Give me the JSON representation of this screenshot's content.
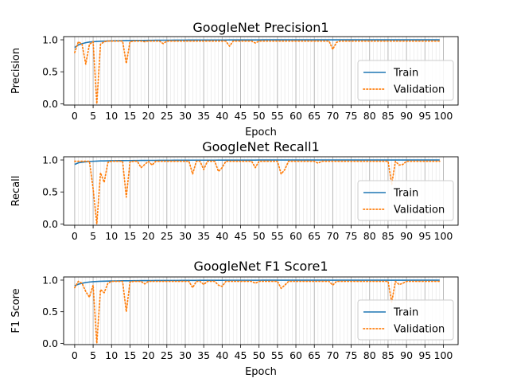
{
  "colors": {
    "train": "#1f77b4",
    "validation": "#ff7f0e",
    "grid": "#b0b0b0"
  },
  "chart_data": [
    {
      "type": "line",
      "title": "GoogleNet Precision1",
      "xlabel": "Epoch",
      "ylabel": "Precision",
      "xlim": [
        -3,
        104
      ],
      "ylim": [
        -0.02,
        1.05
      ],
      "xticks": [
        "0",
        "5",
        "10",
        "15",
        "20",
        "25",
        "30",
        "35",
        "40",
        "45",
        "50",
        "55",
        "60",
        "65",
        "70",
        "75",
        "80",
        "85",
        "90",
        "95",
        "100"
      ],
      "yticks": [
        "0.0",
        "0.5",
        "1.0"
      ],
      "grid": "vertical lines at every epoch",
      "legend": {
        "position": "lower-right",
        "entries": [
          "Train",
          "Validation"
        ]
      },
      "series": [
        {
          "name": "Train",
          "style": "solid",
          "values": [
            0.88,
            0.92,
            0.94,
            0.955,
            0.965,
            0.97,
            0.975,
            0.978,
            0.98,
            0.982,
            0.984,
            0.985,
            0.986,
            0.987,
            0.988,
            0.989,
            0.99,
            0.99,
            0.991,
            0.991,
            0.992,
            0.992,
            0.993,
            0.993,
            0.994,
            0.994,
            0.994,
            0.995,
            0.995,
            0.995,
            0.995,
            0.996,
            0.996,
            0.996,
            0.996,
            0.996,
            0.997,
            0.997,
            0.997,
            0.997,
            0.997,
            0.997,
            0.998,
            0.998,
            0.998,
            0.998,
            0.998,
            0.998,
            0.998,
            0.998,
            0.998,
            0.999,
            0.999,
            0.999,
            0.999,
            0.999,
            0.999,
            0.999,
            0.999,
            0.999,
            0.999,
            0.999,
            0.999,
            0.999,
            0.999,
            0.999,
            0.999,
            0.999,
            0.999,
            0.999,
            0.999,
            0.999,
            0.999,
            0.999,
            0.999,
            0.999,
            0.999,
            0.999,
            0.999,
            0.999,
            0.999,
            0.999,
            0.999,
            0.999,
            0.999,
            0.999,
            0.999,
            0.999,
            0.999,
            0.999,
            0.999,
            0.999,
            0.999,
            0.999,
            0.999,
            0.999,
            0.999,
            0.999,
            0.999,
            0.999
          ]
        },
        {
          "name": "Validation",
          "style": "dotted",
          "values": [
            0.8,
            0.97,
            0.93,
            0.62,
            0.93,
            0.97,
            0.0,
            0.93,
            0.97,
            0.98,
            0.98,
            0.98,
            0.98,
            0.98,
            0.63,
            0.97,
            0.98,
            0.98,
            0.98,
            0.97,
            0.98,
            0.98,
            0.98,
            0.98,
            0.94,
            0.98,
            0.98,
            0.98,
            0.98,
            0.98,
            0.98,
            0.98,
            0.98,
            0.98,
            0.98,
            0.98,
            0.98,
            0.98,
            0.98,
            0.98,
            0.98,
            0.98,
            0.9,
            0.98,
            0.98,
            0.98,
            0.98,
            0.98,
            0.98,
            0.95,
            0.98,
            0.98,
            0.98,
            0.98,
            0.98,
            0.98,
            0.98,
            0.98,
            0.98,
            0.98,
            0.98,
            0.98,
            0.98,
            0.98,
            0.98,
            0.98,
            0.98,
            0.98,
            0.98,
            0.98,
            0.85,
            0.96,
            0.98,
            0.98,
            0.98,
            0.98,
            0.98,
            0.98,
            0.98,
            0.98,
            0.98,
            0.98,
            0.98,
            0.98,
            0.98,
            0.98,
            0.98,
            0.98,
            0.98,
            0.98,
            0.98,
            0.98,
            0.98,
            0.98,
            0.98,
            0.98,
            0.98,
            0.98,
            0.98,
            0.98
          ]
        }
      ]
    },
    {
      "type": "line",
      "title": "GoogleNet Recall1",
      "xlabel": "",
      "ylabel": "Recall",
      "xlim": [
        -3,
        104
      ],
      "ylim": [
        -0.02,
        1.05
      ],
      "xticks": [
        "0",
        "5",
        "10",
        "15",
        "20",
        "25",
        "30",
        "35",
        "40",
        "45",
        "50",
        "55",
        "60",
        "65",
        "70",
        "75",
        "80",
        "85",
        "90",
        "95",
        "100"
      ],
      "yticks": [
        "0.0",
        "0.5",
        "1.0"
      ],
      "grid": "vertical lines at every epoch",
      "legend": {
        "position": "lower-right",
        "entries": [
          "Train",
          "Validation"
        ]
      },
      "series": [
        {
          "name": "Train",
          "style": "solid",
          "values": [
            0.93,
            0.955,
            0.965,
            0.972,
            0.977,
            0.98,
            0.983,
            0.985,
            0.986,
            0.987,
            0.988,
            0.989,
            0.99,
            0.99,
            0.991,
            0.991,
            0.992,
            0.992,
            0.993,
            0.993,
            0.994,
            0.994,
            0.994,
            0.995,
            0.995,
            0.995,
            0.995,
            0.996,
            0.996,
            0.996,
            0.996,
            0.996,
            0.997,
            0.997,
            0.997,
            0.997,
            0.997,
            0.997,
            0.997,
            0.998,
            0.998,
            0.998,
            0.998,
            0.998,
            0.998,
            0.998,
            0.998,
            0.998,
            0.998,
            0.998,
            0.999,
            0.999,
            0.999,
            0.999,
            0.999,
            0.999,
            0.999,
            0.999,
            0.999,
            0.999,
            0.999,
            0.999,
            0.999,
            0.999,
            0.999,
            0.999,
            0.999,
            0.999,
            0.999,
            0.999,
            0.999,
            0.999,
            0.999,
            0.999,
            0.999,
            0.999,
            0.999,
            0.999,
            0.999,
            0.999,
            0.999,
            0.999,
            0.999,
            0.999,
            0.999,
            0.999,
            0.999,
            0.999,
            0.999,
            0.999,
            0.999,
            0.999,
            0.999,
            0.999,
            0.999,
            0.999,
            0.999,
            0.999,
            0.999,
            0.999
          ]
        },
        {
          "name": "Validation",
          "style": "dotted",
          "values": [
            0.98,
            0.98,
            0.98,
            0.98,
            0.98,
            0.55,
            0.0,
            0.8,
            0.65,
            0.96,
            0.98,
            0.98,
            0.98,
            0.98,
            0.42,
            0.97,
            0.98,
            0.98,
            0.88,
            0.93,
            0.98,
            0.92,
            0.98,
            0.98,
            0.98,
            0.98,
            0.98,
            0.98,
            0.98,
            0.98,
            0.98,
            0.98,
            0.78,
            0.98,
            0.98,
            0.85,
            0.98,
            0.98,
            0.98,
            0.82,
            0.88,
            0.98,
            0.98,
            0.98,
            0.98,
            0.98,
            0.98,
            0.98,
            0.98,
            0.88,
            0.98,
            0.98,
            0.98,
            0.98,
            0.98,
            0.98,
            0.78,
            0.85,
            0.98,
            0.98,
            0.98,
            0.98,
            0.98,
            0.98,
            0.98,
            0.98,
            0.95,
            0.98,
            0.98,
            0.98,
            0.98,
            0.98,
            0.98,
            0.98,
            0.98,
            0.98,
            0.98,
            0.98,
            0.98,
            0.98,
            0.98,
            0.98,
            0.98,
            0.98,
            0.98,
            0.98,
            0.62,
            0.98,
            0.92,
            0.93,
            0.98,
            0.98,
            0.98,
            0.98,
            0.98,
            0.98,
            0.98,
            0.98,
            0.98,
            0.98
          ]
        }
      ]
    },
    {
      "type": "line",
      "title": "GoogleNet F1 Score1",
      "xlabel": "Epoch",
      "ylabel": "F1 Score",
      "xlim": [
        -3,
        104
      ],
      "ylim": [
        -0.02,
        1.05
      ],
      "xticks": [
        "0",
        "5",
        "10",
        "15",
        "20",
        "25",
        "30",
        "35",
        "40",
        "45",
        "50",
        "55",
        "60",
        "65",
        "70",
        "75",
        "80",
        "85",
        "90",
        "95",
        "100"
      ],
      "yticks": [
        "0.0",
        "0.5",
        "1.0"
      ],
      "grid": "vertical lines at every epoch",
      "legend": {
        "position": "lower-right",
        "entries": [
          "Train",
          "Validation"
        ]
      },
      "series": [
        {
          "name": "Train",
          "style": "solid",
          "values": [
            0.91,
            0.935,
            0.95,
            0.962,
            0.97,
            0.975,
            0.979,
            0.981,
            0.983,
            0.985,
            0.986,
            0.987,
            0.988,
            0.989,
            0.99,
            0.99,
            0.991,
            0.991,
            0.992,
            0.992,
            0.993,
            0.993,
            0.994,
            0.994,
            0.994,
            0.995,
            0.995,
            0.995,
            0.995,
            0.996,
            0.996,
            0.996,
            0.996,
            0.996,
            0.997,
            0.997,
            0.997,
            0.997,
            0.997,
            0.997,
            0.997,
            0.998,
            0.998,
            0.998,
            0.998,
            0.998,
            0.998,
            0.998,
            0.998,
            0.998,
            0.998,
            0.999,
            0.999,
            0.999,
            0.999,
            0.999,
            0.999,
            0.999,
            0.999,
            0.999,
            0.999,
            0.999,
            0.999,
            0.999,
            0.999,
            0.999,
            0.999,
            0.999,
            0.999,
            0.999,
            0.999,
            0.999,
            0.999,
            0.999,
            0.999,
            0.999,
            0.999,
            0.999,
            0.999,
            0.999,
            0.999,
            0.999,
            0.999,
            0.999,
            0.999,
            0.999,
            0.999,
            0.999,
            0.999,
            0.999,
            0.999,
            0.999,
            0.999,
            0.999,
            0.999,
            0.999,
            0.999,
            0.999,
            0.999,
            0.999
          ]
        },
        {
          "name": "Validation",
          "style": "dotted",
          "values": [
            0.88,
            0.98,
            0.95,
            0.82,
            0.73,
            0.92,
            0.0,
            0.85,
            0.8,
            0.95,
            0.98,
            0.98,
            0.98,
            0.98,
            0.5,
            0.97,
            0.98,
            0.98,
            0.98,
            0.94,
            0.98,
            0.98,
            0.98,
            0.98,
            0.98,
            0.98,
            0.98,
            0.98,
            0.98,
            0.98,
            0.98,
            0.98,
            0.88,
            0.98,
            0.98,
            0.93,
            0.98,
            0.98,
            0.98,
            0.92,
            0.9,
            0.98,
            0.98,
            0.98,
            0.98,
            0.98,
            0.98,
            0.98,
            0.98,
            0.95,
            0.98,
            0.98,
            0.98,
            0.98,
            0.98,
            0.98,
            0.87,
            0.92,
            0.98,
            0.98,
            0.98,
            0.98,
            0.98,
            0.98,
            0.98,
            0.98,
            0.98,
            0.98,
            0.98,
            0.98,
            0.92,
            0.98,
            0.98,
            0.98,
            0.98,
            0.98,
            0.98,
            0.98,
            0.98,
            0.98,
            0.98,
            0.98,
            0.98,
            0.98,
            0.98,
            0.98,
            0.65,
            0.98,
            0.93,
            0.95,
            0.98,
            0.98,
            0.98,
            0.98,
            0.98,
            0.98,
            0.98,
            0.98,
            0.98,
            0.98
          ]
        }
      ]
    }
  ]
}
